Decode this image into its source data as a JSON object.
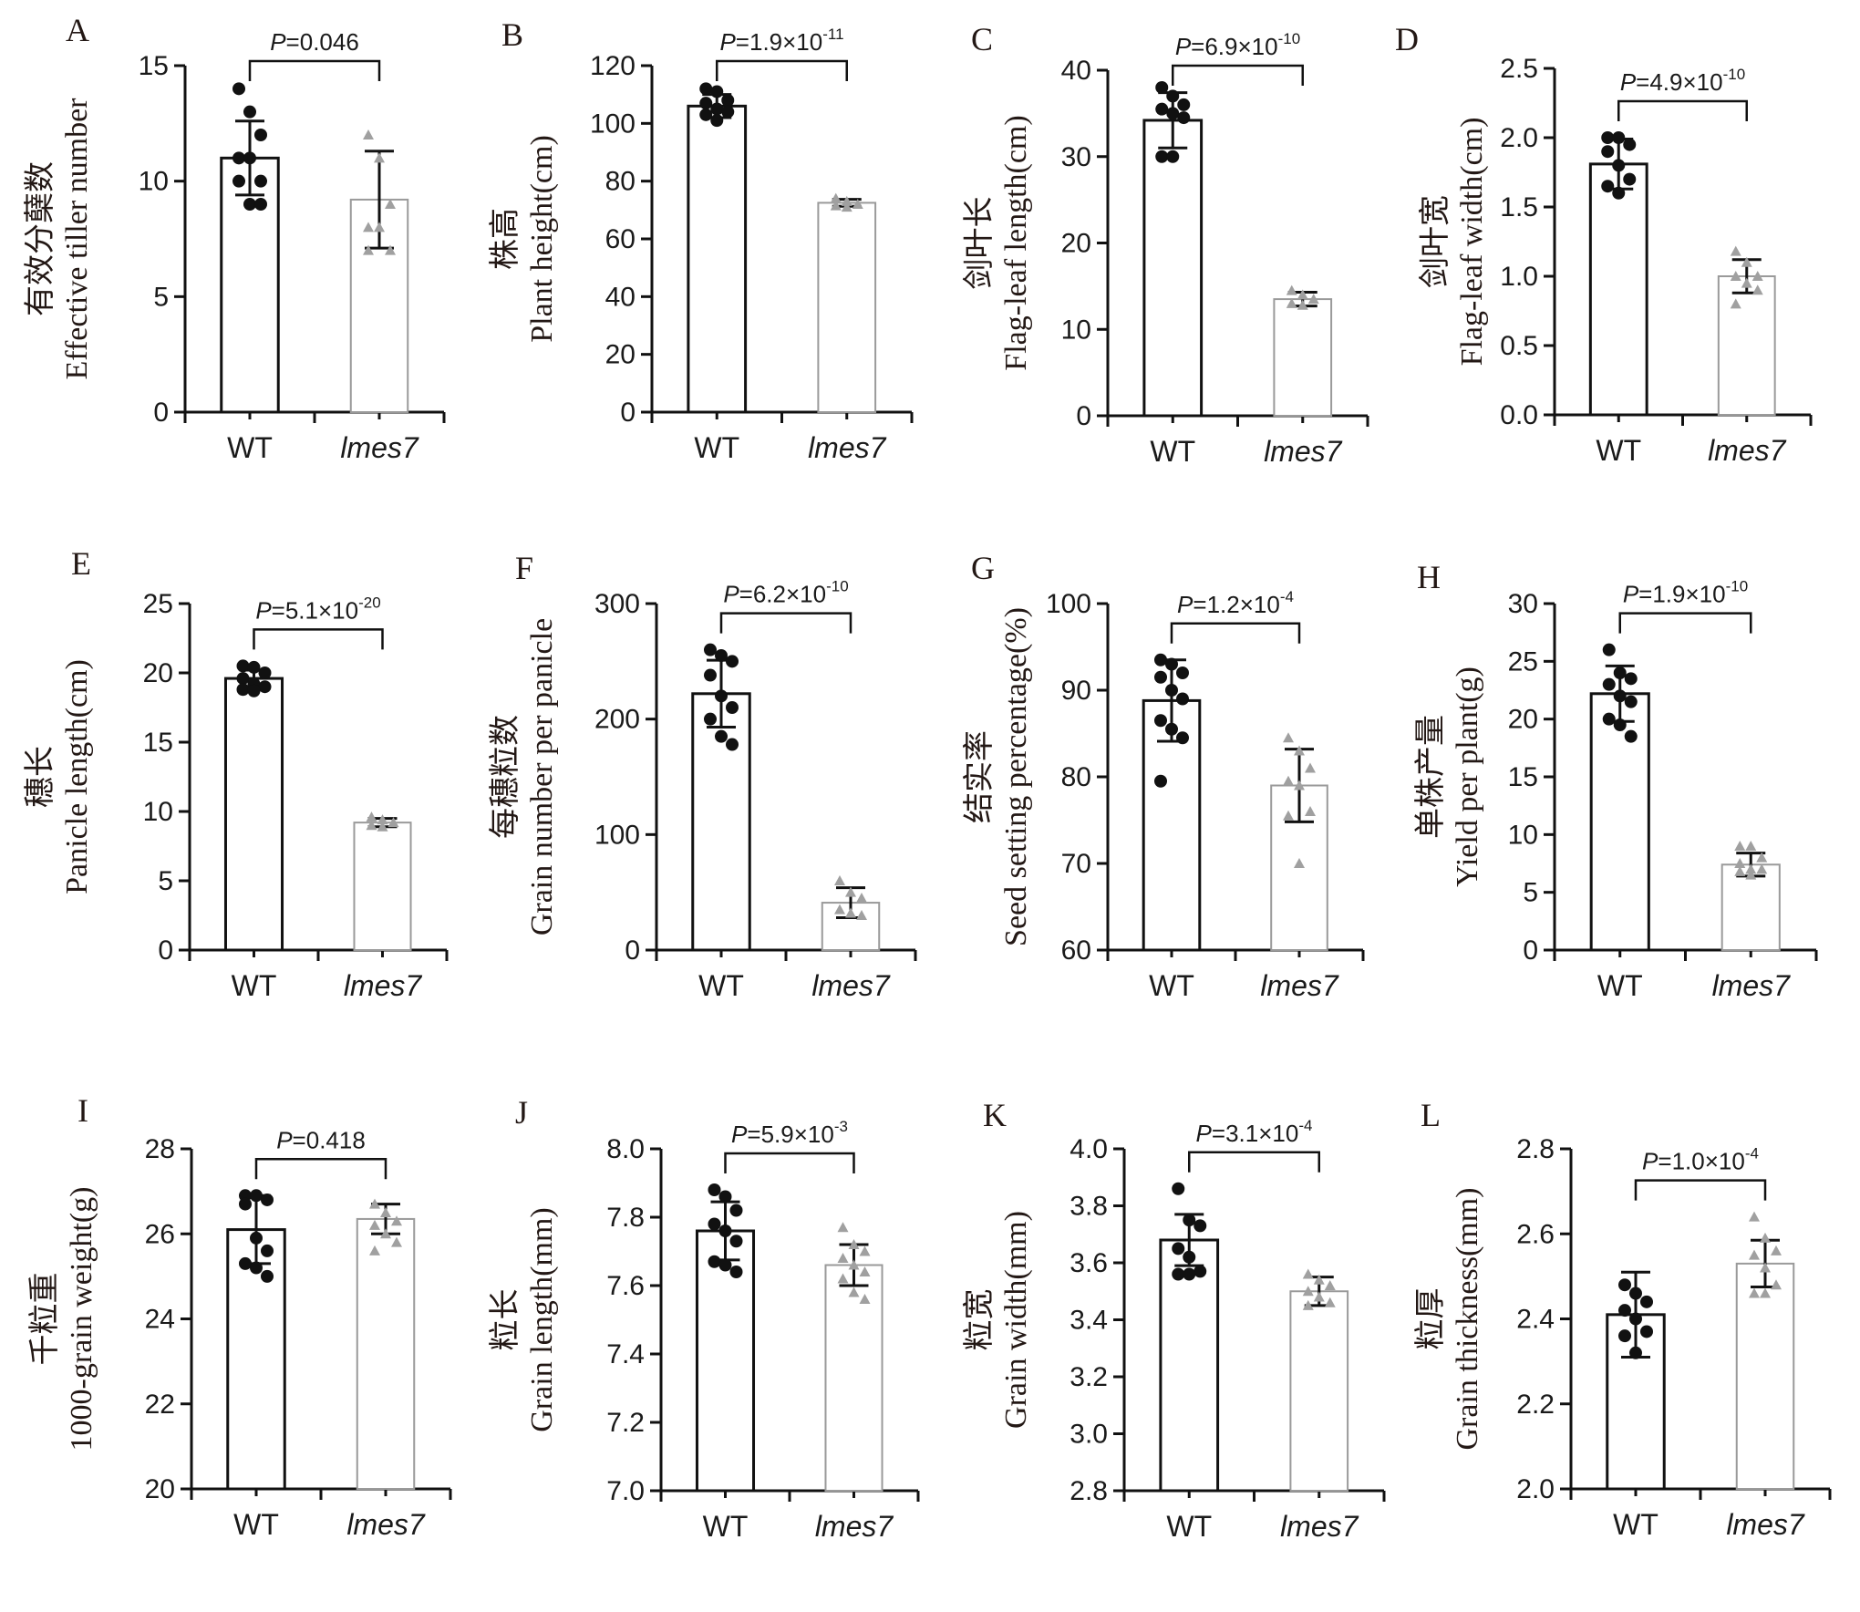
{
  "figure": {
    "categories": [
      "WT",
      "lmes7"
    ],
    "series_colors": {
      "WT": "#111111",
      "lmes7": "#9a9a9a"
    }
  },
  "chart_data": [
    {
      "panel": "A",
      "type": "bar",
      "title": "",
      "ylabel_cn": "有效分蘖数",
      "ylabel": "Effective tiller number",
      "categories": [
        "WT",
        "lmes7"
      ],
      "ylim": [
        0,
        15
      ],
      "yticks": [
        "0",
        "5",
        "10",
        "15"
      ],
      "values": [
        11.0,
        9.2
      ],
      "errors": [
        1.6,
        2.1
      ],
      "points": [
        [
          14,
          13,
          12,
          11,
          11,
          10,
          10,
          9,
          9
        ],
        [
          12,
          11,
          9,
          8,
          8,
          7,
          7
        ]
      ],
      "pvalue": {
        "base": "0.046",
        "exp": ""
      }
    },
    {
      "panel": "B",
      "type": "bar",
      "ylabel_cn": "株高",
      "ylabel": "Plant height(cm)",
      "categories": [
        "WT",
        "lmes7"
      ],
      "ylim": [
        0,
        120
      ],
      "yticks": [
        "0",
        "20",
        "40",
        "60",
        "80",
        "100",
        "120"
      ],
      "values": [
        106,
        72.5
      ],
      "errors": [
        4,
        1.2
      ],
      "points": [
        [
          112,
          111,
          108,
          107,
          105,
          104,
          103,
          101
        ],
        [
          74,
          73,
          72,
          71.5,
          71
        ]
      ],
      "pvalue": {
        "base": "1.9×10",
        "exp": "-11"
      }
    },
    {
      "panel": "C",
      "type": "bar",
      "ylabel_cn": "剑叶长",
      "ylabel": "Flag-leaf length(cm)",
      "categories": [
        "WT",
        "lmes7"
      ],
      "ylim": [
        0,
        40
      ],
      "yticks": [
        "0",
        "10",
        "20",
        "30",
        "40"
      ],
      "values": [
        34.2,
        13.5
      ],
      "errors": [
        3.2,
        0.8
      ],
      "points": [
        [
          38,
          37,
          36,
          35.5,
          35,
          34.5,
          30,
          30
        ],
        [
          14.5,
          14,
          13.5,
          13,
          12.8
        ]
      ],
      "pvalue": {
        "base": "6.9×10",
        "exp": "-10"
      }
    },
    {
      "panel": "D",
      "type": "bar",
      "ylabel_cn": "剑叶宽",
      "ylabel": "Flag-leaf width(cm)",
      "categories": [
        "WT",
        "lmes7"
      ],
      "ylim": [
        0,
        2.5
      ],
      "yticks": [
        "0.0",
        "0.5",
        "1.0",
        "1.5",
        "2.0",
        "2.5"
      ],
      "values": [
        1.81,
        1.0
      ],
      "errors": [
        0.18,
        0.12
      ],
      "points": [
        [
          2.0,
          2.0,
          1.95,
          1.9,
          1.8,
          1.7,
          1.65,
          1.6
        ],
        [
          1.18,
          1.1,
          1.0,
          1.0,
          0.95,
          0.9,
          0.8
        ]
      ],
      "pvalue": {
        "base": "4.9×10",
        "exp": "-10"
      }
    },
    {
      "panel": "E",
      "type": "bar",
      "ylabel_cn": "穗长",
      "ylabel": "Panicle length(cm)",
      "categories": [
        "WT",
        "lmes7"
      ],
      "ylim": [
        0,
        25
      ],
      "yticks": [
        "0",
        "5",
        "10",
        "15",
        "20",
        "25"
      ],
      "values": [
        19.6,
        9.2
      ],
      "errors": [
        0.6,
        0.3
      ],
      "points": [
        [
          20.5,
          20.4,
          20,
          19.6,
          19.2,
          19,
          18.8,
          18.7
        ],
        [
          9.6,
          9.4,
          9.2,
          9.0,
          8.9
        ]
      ],
      "pvalue": {
        "base": "5.1×10",
        "exp": "-20"
      }
    },
    {
      "panel": "F",
      "type": "bar",
      "ylabel_cn": "每穗粒数",
      "ylabel": "Grain number per panicle",
      "categories": [
        "WT",
        "lmes7"
      ],
      "ylim": [
        0,
        300
      ],
      "yticks": [
        "0",
        "100",
        "200",
        "300"
      ],
      "values": [
        222,
        41
      ],
      "errors": [
        29,
        13
      ],
      "points": [
        [
          260,
          255,
          250,
          238,
          220,
          210,
          200,
          185,
          178
        ],
        [
          60,
          50,
          45,
          35,
          32,
          30
        ]
      ],
      "pvalue": {
        "base": "6.2×10",
        "exp": "-10"
      }
    },
    {
      "panel": "G",
      "type": "bar",
      "ylabel_cn": "结实率",
      "ylabel": "Seed setting percentage(%)",
      "categories": [
        "WT",
        "lmes7"
      ],
      "ylim": [
        60,
        100
      ],
      "yticks": [
        "60",
        "70",
        "80",
        "90",
        "100"
      ],
      "values": [
        88.8,
        79.0
      ],
      "errors": [
        4.7,
        4.2
      ],
      "points": [
        [
          93.5,
          93,
          92,
          91.5,
          90,
          89,
          86.5,
          85.5,
          84.5,
          79.5
        ],
        [
          84.5,
          83,
          81,
          79.5,
          79,
          76,
          75.5,
          70
        ]
      ],
      "pvalue": {
        "base": "1.2×10",
        "exp": "-4"
      }
    },
    {
      "panel": "H",
      "type": "bar",
      "ylabel_cn": "单株产量",
      "ylabel": "Yield per plant(g)",
      "categories": [
        "WT",
        "lmes7"
      ],
      "ylim": [
        0,
        30
      ],
      "yticks": [
        "0",
        "5",
        "10",
        "15",
        "20",
        "25",
        "30"
      ],
      "values": [
        22.2,
        7.4
      ],
      "errors": [
        2.4,
        1.0
      ],
      "points": [
        [
          26,
          24,
          23.5,
          23,
          22,
          21.5,
          20,
          19.5,
          18.5
        ],
        [
          9,
          9,
          8,
          7.5,
          7,
          7,
          6.8,
          6.5
        ]
      ],
      "pvalue": {
        "base": "1.9×10",
        "exp": "-10"
      }
    },
    {
      "panel": "I",
      "type": "bar",
      "ylabel_cn": "千粒重",
      "ylabel": "1000-grain weight(g)",
      "categories": [
        "WT",
        "lmes7"
      ],
      "ylim": [
        20,
        28
      ],
      "yticks": [
        "20",
        "22",
        "24",
        "26",
        "28"
      ],
      "values": [
        26.1,
        26.35
      ],
      "errors": [
        0.8,
        0.35
      ],
      "points": [
        [
          26.9,
          26.9,
          26.8,
          26.7,
          25.9,
          25.6,
          25.3,
          25.2,
          25.0
        ],
        [
          26.7,
          26.5,
          26.3,
          26.2,
          26.0,
          25.8,
          25.6
        ]
      ],
      "pvalue": {
        "base": "0.418",
        "exp": ""
      }
    },
    {
      "panel": "J",
      "type": "bar",
      "ylabel_cn": "粒长",
      "ylabel": "Grain length(mm)",
      "categories": [
        "WT",
        "lmes7"
      ],
      "ylim": [
        7.0,
        8.0
      ],
      "yticks": [
        "7.0",
        "7.2",
        "7.4",
        "7.6",
        "7.8",
        "8.0"
      ],
      "values": [
        7.76,
        7.66
      ],
      "errors": [
        0.085,
        0.06
      ],
      "points": [
        [
          7.88,
          7.86,
          7.82,
          7.78,
          7.76,
          7.73,
          7.67,
          7.66,
          7.64
        ],
        [
          7.77,
          7.72,
          7.7,
          7.68,
          7.66,
          7.64,
          7.62,
          7.58,
          7.56
        ]
      ],
      "pvalue": {
        "base": "5.9×10",
        "exp": "-3"
      }
    },
    {
      "panel": "K",
      "type": "bar",
      "ylabel_cn": "粒宽",
      "ylabel": "Grain width(mm)",
      "categories": [
        "WT",
        "lmes7"
      ],
      "ylim": [
        2.8,
        4.0
      ],
      "yticks": [
        "2.8",
        "3.0",
        "3.2",
        "3.4",
        "3.6",
        "3.8",
        "4.0"
      ],
      "values": [
        3.68,
        3.5
      ],
      "errors": [
        0.09,
        0.05
      ],
      "points": [
        [
          3.86,
          3.75,
          3.73,
          3.65,
          3.62,
          3.57,
          3.56,
          3.56
        ],
        [
          3.56,
          3.54,
          3.52,
          3.5,
          3.48,
          3.46,
          3.45
        ]
      ],
      "pvalue": {
        "base": "3.1×10",
        "exp": "-4"
      }
    },
    {
      "panel": "L",
      "type": "bar",
      "ylabel_cn": "粒厚",
      "ylabel": "Grain thickness(mm)",
      "categories": [
        "WT",
        "lmes7"
      ],
      "ylim": [
        2.0,
        2.8
      ],
      "yticks": [
        "2.0",
        "2.2",
        "2.4",
        "2.6",
        "2.8"
      ],
      "values": [
        2.41,
        2.53
      ],
      "errors": [
        0.1,
        0.055
      ],
      "points": [
        [
          2.48,
          2.46,
          2.44,
          2.42,
          2.4,
          2.37,
          2.36,
          2.32
        ],
        [
          2.64,
          2.59,
          2.56,
          2.55,
          2.52,
          2.48,
          2.46,
          2.46
        ]
      ],
      "pvalue": {
        "base": "1.0×10",
        "exp": "-4"
      }
    }
  ]
}
